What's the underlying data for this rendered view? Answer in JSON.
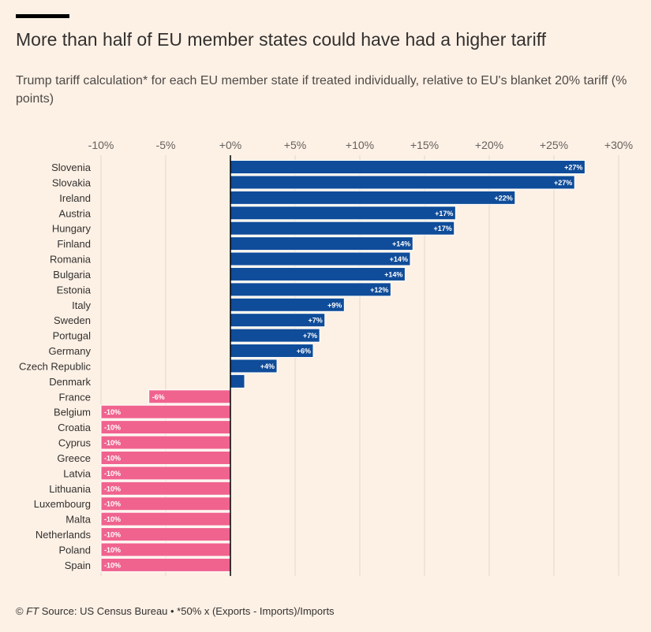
{
  "header": {
    "title": "More than half of EU member states could have had a higher tariff",
    "subtitle": "Trump tariff calculation* for each EU member state if treated individually, relative to EU's blanket 20% tariff (% points)"
  },
  "footer": {
    "copyright": "© ",
    "brand": "FT",
    "source": " Source: US Census Bureau • *50% x (Exports - Imports)/Imports"
  },
  "colors": {
    "background": "#fdf1e6",
    "positive": "#0f4c99",
    "negative": "#f0638f",
    "grid": "#e4d8cd",
    "text": "#33302e"
  },
  "chart_data": {
    "type": "bar",
    "orientation": "horizontal",
    "categories": [
      "Slovenia",
      "Slovakia",
      "Ireland",
      "Austria",
      "Hungary",
      "Finland",
      "Romania",
      "Bulgaria",
      "Estonia",
      "Italy",
      "Sweden",
      "Portugal",
      "Germany",
      "Czech Republic",
      "Denmark",
      "France",
      "Belgium",
      "Croatia",
      "Cyprus",
      "Greece",
      "Latvia",
      "Lithuania",
      "Luxembourg",
      "Malta",
      "Netherlands",
      "Poland",
      "Spain"
    ],
    "values": [
      27.4,
      26.6,
      22.0,
      17.4,
      17.3,
      14.1,
      13.9,
      13.5,
      12.4,
      8.8,
      7.3,
      6.9,
      6.4,
      3.6,
      1.1,
      -6.3,
      -10,
      -10,
      -10,
      -10,
      -10,
      -10,
      -10,
      -10,
      -10,
      -10,
      -10
    ],
    "data_labels": [
      "+27%",
      "+27%",
      "+22%",
      "+17%",
      "+17%",
      "+14%",
      "+14%",
      "+14%",
      "+12%",
      "+9%",
      "+7%",
      "+7%",
      "+6%",
      "+4%",
      "",
      "-6%",
      "-10%",
      "-10%",
      "-10%",
      "-10%",
      "-10%",
      "-10%",
      "-10%",
      "-10%",
      "-10%",
      "-10%",
      "-10%"
    ],
    "xlim": [
      -10,
      30
    ],
    "xticks": [
      -10,
      -5,
      0,
      5,
      10,
      15,
      20,
      25,
      30
    ],
    "xtick_labels": [
      "-10%",
      "-5%",
      "+0%",
      "+5%",
      "+10%",
      "+15%",
      "+20%",
      "+25%",
      "+30%"
    ],
    "xlabel": "",
    "ylabel": "",
    "axis_position": "top",
    "grid": true,
    "legend": "none"
  }
}
